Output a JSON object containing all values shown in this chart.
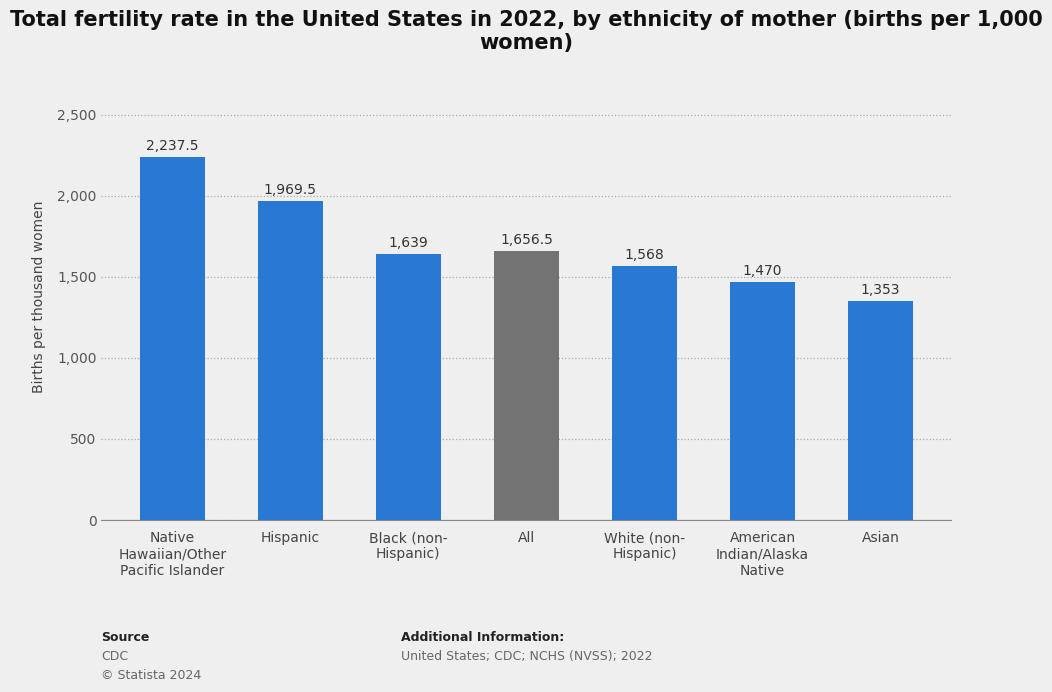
{
  "title": "Total fertility rate in the United States in 2022, by ethnicity of mother (births per 1,000\nwomen)",
  "categories": [
    "Native\nHawaiian/Other\nPacific Islander",
    "Hispanic",
    "Black (non-\nHispanic)",
    "All",
    "White (non-\nHispanic)",
    "American\nIndian/Alaska\nNative",
    "Asian"
  ],
  "values": [
    2237.5,
    1969.5,
    1639.0,
    1656.5,
    1568.0,
    1470.0,
    1353.0
  ],
  "bar_colors": [
    "#2878d4",
    "#2878d4",
    "#2878d4",
    "#737373",
    "#2878d4",
    "#2878d4",
    "#2878d4"
  ],
  "value_labels": [
    "2,237.5",
    "1,969.5",
    "1,639",
    "1,656.5",
    "1,568",
    "1,470",
    "1,353"
  ],
  "ylabel": "Births per thousand women",
  "ylim": [
    0,
    2750
  ],
  "yticks": [
    0,
    500,
    1000,
    1500,
    2000,
    2500
  ],
  "ytick_labels": [
    "0",
    "500",
    "1,000",
    "1,500",
    "2,000",
    "2,500"
  ],
  "background_color": "#efefef",
  "plot_bg_color": "#efefef",
  "source_bold": "Source",
  "source_normal": "CDC\n© Statista 2024",
  "additional_bold": "Additional Information:",
  "additional_normal": "United States; CDC; NCHS (NVSS); 2022",
  "title_fontsize": 15,
  "label_fontsize": 10,
  "tick_fontsize": 10,
  "value_label_fontsize": 10,
  "ylabel_fontsize": 10,
  "bar_width": 0.55
}
